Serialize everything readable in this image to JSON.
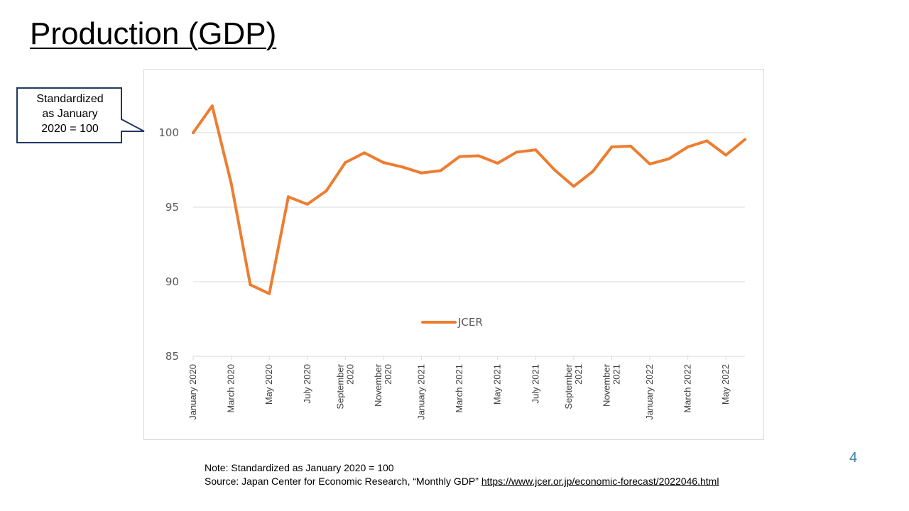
{
  "slide": {
    "title": "Production (GDP)",
    "page_number": "4"
  },
  "callout": {
    "text": "Standardized\nas January\n2020 = 100"
  },
  "notes": {
    "note": "Note: Standardized as January 2020 = 100",
    "source_prefix": "Source: Japan Center for Economic Research, “Monthly  GDP” ",
    "source_link": "https://www.jcer.or.jp/economic-forecast/2022046.html"
  },
  "colors": {
    "series": "#ed7d31",
    "grid": "#d9d9d9",
    "callout_border": "#1f3864"
  },
  "chart_data": {
    "type": "line",
    "title": "",
    "xlabel": "",
    "ylabel": "",
    "ylim": [
      85,
      102.5
    ],
    "yticks": [
      85,
      90,
      95,
      100
    ],
    "grid": true,
    "legend_position": "center",
    "x": [
      "January 2020",
      "February 2020",
      "March 2020",
      "April 2020",
      "May 2020",
      "June 2020",
      "July 2020",
      "August 2020",
      "September 2020",
      "October 2020",
      "November 2020",
      "December 2020",
      "January 2021",
      "February 2021",
      "March 2021",
      "April 2021",
      "May 2021",
      "June 2021",
      "July 2021",
      "August 2021",
      "September 2021",
      "October 2021",
      "November 2021",
      "December 2021",
      "January 2022",
      "February 2022",
      "March 2022",
      "April 2022",
      "May 2022",
      "June 2022"
    ],
    "xtick_labels": [
      {
        "index": 0,
        "lines": [
          "January 2020"
        ]
      },
      {
        "index": 2,
        "lines": [
          "March 2020"
        ]
      },
      {
        "index": 4,
        "lines": [
          "May 2020"
        ]
      },
      {
        "index": 6,
        "lines": [
          "July 2020"
        ]
      },
      {
        "index": 8,
        "lines": [
          "September",
          "2020"
        ]
      },
      {
        "index": 10,
        "lines": [
          "November",
          "2020"
        ]
      },
      {
        "index": 12,
        "lines": [
          "January 2021"
        ]
      },
      {
        "index": 14,
        "lines": [
          "March 2021"
        ]
      },
      {
        "index": 16,
        "lines": [
          "May 2021"
        ]
      },
      {
        "index": 18,
        "lines": [
          "July 2021"
        ]
      },
      {
        "index": 20,
        "lines": [
          "September",
          "2021"
        ]
      },
      {
        "index": 22,
        "lines": [
          "November",
          "2021"
        ]
      },
      {
        "index": 24,
        "lines": [
          "January 2022"
        ]
      },
      {
        "index": 26,
        "lines": [
          "March 2022"
        ]
      },
      {
        "index": 28,
        "lines": [
          "May 2022"
        ]
      }
    ],
    "series": [
      {
        "name": "JCER",
        "values": [
          100.0,
          101.8,
          96.6,
          89.8,
          89.2,
          95.7,
          95.2,
          96.1,
          98.0,
          98.65,
          98.0,
          97.7,
          97.3,
          97.45,
          98.4,
          98.45,
          97.95,
          98.7,
          98.85,
          97.5,
          96.4,
          97.4,
          99.05,
          99.1,
          97.9,
          98.25,
          99.05,
          99.45,
          98.5,
          99.55
        ]
      }
    ]
  }
}
